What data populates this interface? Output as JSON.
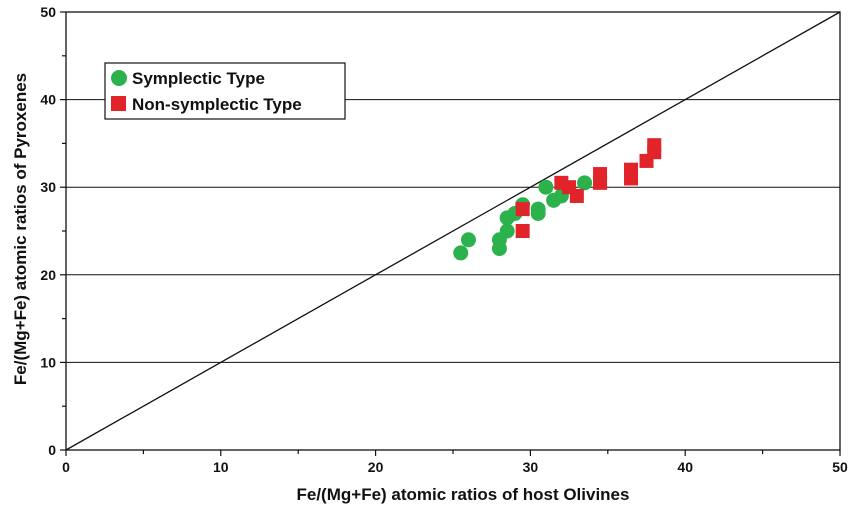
{
  "chart_data": {
    "type": "scatter",
    "title": "",
    "xlabel": "Fe/(Mg+Fe) atomic ratios of host Olivines",
    "ylabel": "Fe/(Mg+Fe) atomic ratios of Pyroxenes",
    "xlim": [
      0,
      50
    ],
    "ylim": [
      0,
      50
    ],
    "x_ticks": [
      "0",
      "10",
      "20",
      "30",
      "40",
      "50"
    ],
    "y_ticks": [
      "0",
      "10",
      "20",
      "30",
      "40",
      "50"
    ],
    "grid": "horizontal",
    "reference_line": "y = x",
    "legend_position": "top-left",
    "series": [
      {
        "name": "Symplectic Type",
        "marker": "circle",
        "color": "#2bb24c",
        "points": [
          [
            25.5,
            22.5
          ],
          [
            26.0,
            24.0
          ],
          [
            28.0,
            23.0
          ],
          [
            28.0,
            24.0
          ],
          [
            28.5,
            25.0
          ],
          [
            28.5,
            26.5
          ],
          [
            29.0,
            27.0
          ],
          [
            29.5,
            28.0
          ],
          [
            30.5,
            27.0
          ],
          [
            30.5,
            27.5
          ],
          [
            31.0,
            30.0
          ],
          [
            31.5,
            28.5
          ],
          [
            32.0,
            29.0
          ],
          [
            33.5,
            30.5
          ]
        ]
      },
      {
        "name": "Non-symplectic Type",
        "marker": "square",
        "color": "#e0242a",
        "points": [
          [
            29.5,
            25.0
          ],
          [
            29.5,
            27.5
          ],
          [
            32.0,
            30.5
          ],
          [
            32.5,
            30.0
          ],
          [
            33.0,
            29.0
          ],
          [
            34.5,
            30.5
          ],
          [
            34.5,
            31.5
          ],
          [
            36.5,
            31.0
          ],
          [
            36.5,
            32.0
          ],
          [
            37.5,
            33.0
          ],
          [
            38.0,
            34.0
          ],
          [
            38.0,
            34.8
          ]
        ]
      }
    ]
  }
}
